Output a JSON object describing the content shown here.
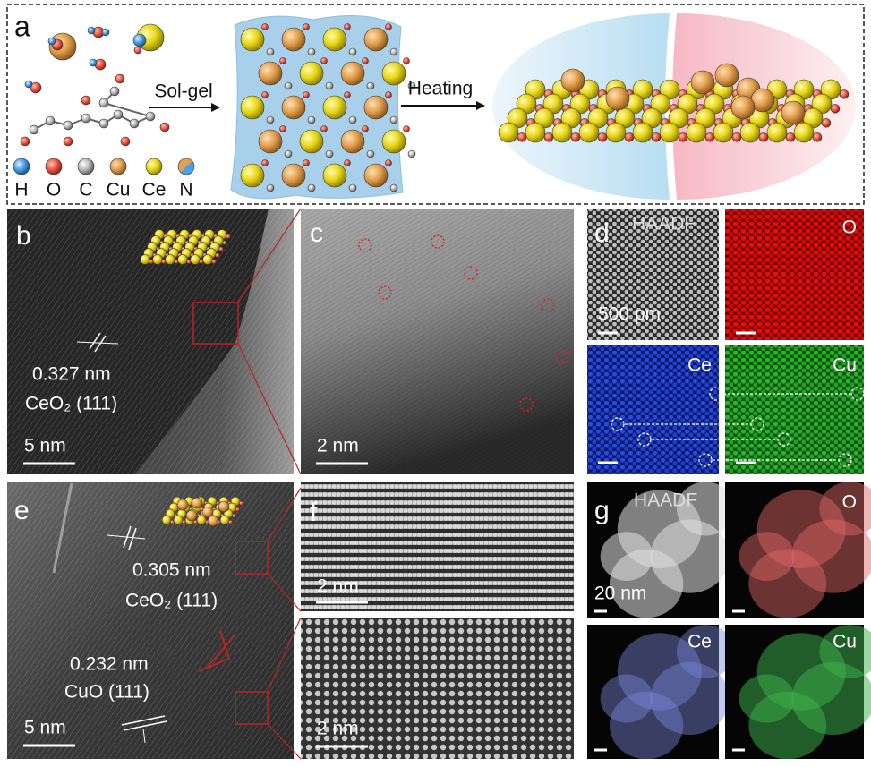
{
  "panel_a": {
    "label": "a",
    "legend": [
      "H",
      "O",
      "C",
      "Cu",
      "Ce",
      "N"
    ],
    "step_1": "Sol-gel",
    "step_2": "Heating"
  },
  "panel_b": {
    "label": "b",
    "spacing": "0.327 nm",
    "plane": "CeO₂ (111)",
    "scale": "5 nm"
  },
  "panel_c": {
    "label": "c",
    "scale": "2 nm"
  },
  "panel_d": {
    "label": "d",
    "maps": [
      "HAADF",
      "O",
      "Ce",
      "Cu"
    ],
    "scale": "500 pm"
  },
  "panel_e": {
    "label": "e",
    "spacing_1": "0.305 nm",
    "plane_1": "CeO₂ (111)",
    "spacing_2": "0.232 nm",
    "plane_2": "CuO (111)",
    "scale": "5 nm"
  },
  "panel_f": {
    "label": "f",
    "scale_top": "2 nm",
    "scale_bottom": "2 nm"
  },
  "panel_g": {
    "label": "g",
    "maps": [
      "HAADF",
      "O",
      "Ce",
      "Cu"
    ],
    "scale": "20 nm"
  }
}
